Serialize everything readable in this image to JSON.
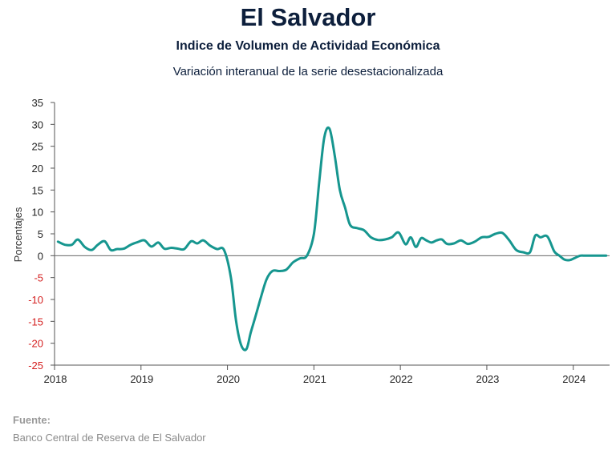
{
  "header": {
    "title": "El Salvador",
    "subtitle": "Indice de Volumen de  Actividad Económica",
    "description": "Variación interanual de la serie desestacionalizada"
  },
  "footer": {
    "source_label": "Fuente:",
    "source_text": "Banco Central de Reserva de El Salvador"
  },
  "colors": {
    "line": "#16968f",
    "positive_tick": "#222222",
    "negative_tick": "#d42020",
    "title": "#0d1f3c"
  },
  "chart_data": {
    "type": "line",
    "ylabel": "Porcentajes",
    "xlabel": "",
    "ylim": [
      -25,
      35
    ],
    "yticks": [
      35,
      30,
      25,
      20,
      15,
      10,
      5,
      0,
      -5,
      -10,
      -15,
      -20,
      -25
    ],
    "xticks": [
      "2018",
      "2019",
      "2020",
      "2021",
      "2022",
      "2023",
      "2024"
    ],
    "xlim": [
      2018.0,
      2024.42
    ],
    "grid": false,
    "series": [
      {
        "x": [
          2018.04,
          2018.12,
          2018.2,
          2018.27,
          2018.35,
          2018.43,
          2018.5,
          2018.58,
          2018.65,
          2018.72,
          2018.8,
          2018.88,
          2018.96,
          2019.04,
          2019.12,
          2019.2,
          2019.27,
          2019.35,
          2019.43,
          2019.5,
          2019.58,
          2019.65,
          2019.72,
          2019.8,
          2019.88,
          2019.96,
          2020.04,
          2020.1,
          2020.16,
          2020.22,
          2020.27,
          2020.33,
          2020.38,
          2020.45,
          2020.52,
          2020.6,
          2020.68,
          2020.76,
          2020.84,
          2020.92,
          2021.0,
          2021.06,
          2021.12,
          2021.18,
          2021.24,
          2021.3,
          2021.36,
          2021.42,
          2021.5,
          2021.58,
          2021.66,
          2021.74,
          2021.82,
          2021.9,
          2021.98,
          2022.06,
          2022.12,
          2022.18,
          2022.24,
          2022.3,
          2022.36,
          2022.42,
          2022.48,
          2022.54,
          2022.62,
          2022.7,
          2022.78,
          2022.86,
          2022.94,
          2023.02,
          2023.1,
          2023.18,
          2023.26,
          2023.34,
          2023.42,
          2023.5,
          2023.56,
          2023.62,
          2023.7,
          2023.78,
          2023.84,
          2023.9,
          2023.96,
          2024.02,
          2024.08,
          2024.14,
          2024.2,
          2024.26,
          2024.32,
          2024.38
        ],
        "values": [
          3.2,
          2.5,
          2.5,
          3.7,
          2.0,
          1.3,
          2.5,
          3.3,
          1.3,
          1.5,
          1.6,
          2.5,
          3.1,
          3.5,
          2.1,
          3.0,
          1.6,
          1.8,
          1.6,
          1.5,
          3.3,
          2.8,
          3.5,
          2.3,
          1.5,
          1.3,
          -5.0,
          -15.0,
          -20.5,
          -21.3,
          -17.5,
          -13.5,
          -10.0,
          -5.5,
          -3.5,
          -3.5,
          -3.2,
          -1.5,
          -0.6,
          0.0,
          5.0,
          16.5,
          27.0,
          29.0,
          23.0,
          15.0,
          11.0,
          7.0,
          6.3,
          5.8,
          4.2,
          3.6,
          3.7,
          4.2,
          5.3,
          2.6,
          4.2,
          2.0,
          4.0,
          3.5,
          3.0,
          3.5,
          3.7,
          2.7,
          2.8,
          3.5,
          2.7,
          3.2,
          4.2,
          4.3,
          5.0,
          5.2,
          3.5,
          1.3,
          0.8,
          0.8,
          4.6,
          4.2,
          4.4,
          1.0,
          0.0,
          -0.9,
          -1.0,
          -0.5,
          0.0,
          0.0,
          0.0,
          0.0,
          0.0,
          0.0
        ]
      }
    ]
  }
}
